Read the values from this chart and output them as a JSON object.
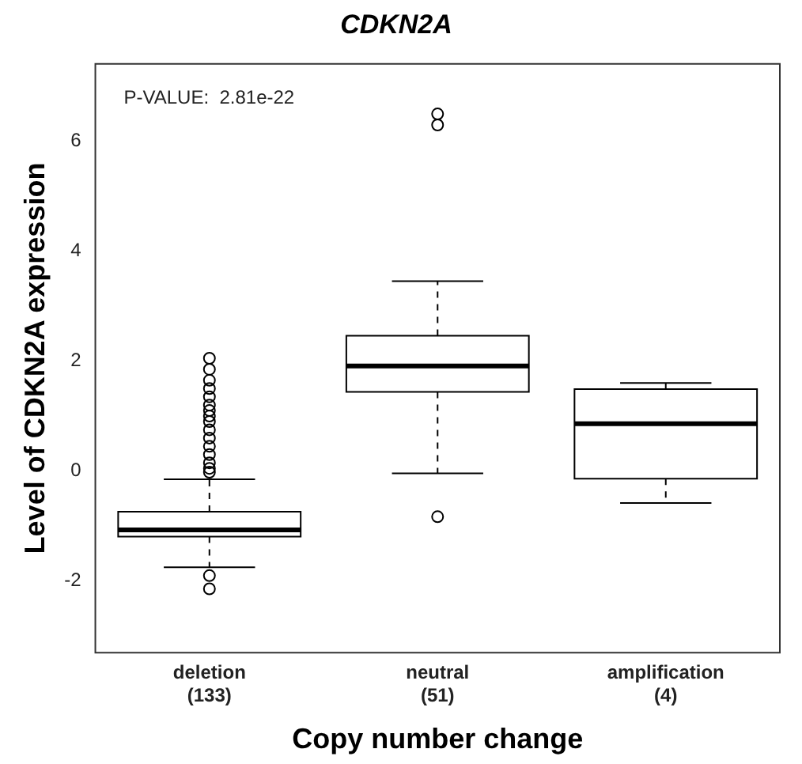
{
  "chart_data": {
    "type": "box",
    "title": "CDKN2A",
    "xlabel": "Copy number change",
    "ylabel": "Level of CDKN2A expression",
    "categories": [
      "deletion (133)",
      "neutral (51)",
      "amplification (4)"
    ],
    "boxes": [
      {
        "low": -1.75,
        "q1": -1.19,
        "median": -1.07,
        "q3": -0.74,
        "high": -0.15,
        "outliers": [
          -1.9,
          -2.14,
          -0.02,
          0.05,
          0.15,
          0.3,
          0.45,
          0.6,
          0.75,
          0.9,
          1.0,
          1.1,
          1.2,
          1.35,
          1.5,
          1.65,
          1.85,
          2.05
        ]
      },
      {
        "low": -0.04,
        "q1": 1.44,
        "median": 1.91,
        "q3": 2.46,
        "high": 3.45,
        "outliers": [
          -0.83,
          6.29,
          6.49
        ]
      },
      {
        "low": -0.58,
        "q1": -0.14,
        "median": 0.86,
        "q3": 1.49,
        "high": 1.6
      }
    ],
    "color": "#000000",
    "ylim": [
      -3.3,
      7.4
    ],
    "yticks": [
      -2,
      0,
      2,
      4,
      6
    ],
    "grid": false,
    "annotations": [
      "P-VALUE:  2.81e-22"
    ]
  }
}
